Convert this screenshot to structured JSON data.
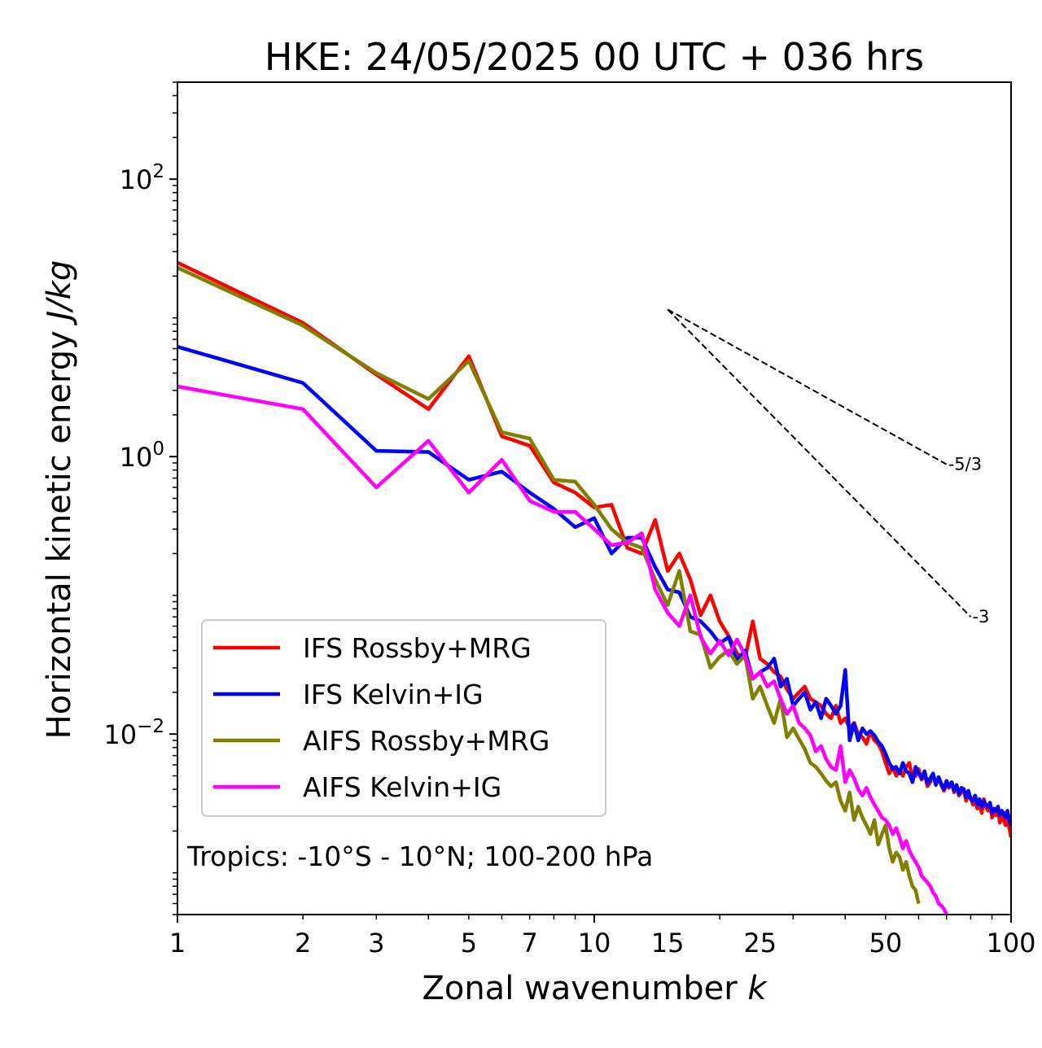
{
  "chart_data": {
    "type": "line",
    "title": "HKE: 24/05/2025 00 UTC + 036 hrs",
    "xlabel": "Zonal wavenumber",
    "xlabel_italic": "k",
    "ylabel": "Horizontal kinetic energy",
    "ylabel_italic": "J/kg",
    "xscale": "log",
    "yscale": "log",
    "xlim": [
      1,
      100
    ],
    "ylim": [
      0.0005,
      500
    ],
    "x_ticks": [
      1,
      2,
      3,
      5,
      7,
      10,
      15,
      25,
      50,
      100
    ],
    "x_tick_labels": [
      "1",
      "2",
      "3",
      "5",
      "7",
      "10",
      "15",
      "25",
      "50",
      "100"
    ],
    "y_ticks": [
      100,
      1,
      0.01
    ],
    "y_tick_base": [
      "10",
      "10",
      "10"
    ],
    "y_tick_exp": [
      "2",
      "0",
      "−2"
    ],
    "grid": false,
    "legend_position": "lower-left",
    "annotation": "Tropics: -10°S - 10°N; 100-200 hPa",
    "reference_lines": [
      {
        "label": "-5/3",
        "slope": -1.6667,
        "x": [
          15,
          70
        ],
        "y": [
          11.5,
          0.88
        ]
      },
      {
        "label": "-3",
        "slope": -3,
        "x": [
          15,
          80
        ],
        "y": [
          11.5,
          0.07
        ]
      }
    ],
    "series": [
      {
        "name": "IFS Rossby+MRG",
        "color": "#ff0000",
        "x": [
          1,
          2,
          3,
          4,
          5,
          6,
          7,
          8,
          9,
          10,
          11,
          12,
          13,
          14,
          15,
          16,
          17,
          18,
          19,
          20,
          21,
          22,
          23,
          24,
          25,
          26,
          27,
          28,
          29,
          30,
          31,
          32,
          33,
          34,
          35,
          36,
          37,
          38,
          39,
          40,
          41,
          42,
          43,
          44,
          45,
          46,
          47,
          48,
          49,
          50,
          51,
          52,
          53,
          54,
          55,
          56,
          57,
          58,
          59,
          60,
          61,
          62,
          63,
          64,
          65,
          66,
          67,
          68,
          69,
          70,
          71,
          72,
          73,
          74,
          75,
          76,
          77,
          78,
          79,
          80,
          81,
          82,
          83,
          84,
          85,
          86,
          87,
          88,
          89,
          90,
          91,
          92,
          93,
          94,
          95,
          96,
          97,
          98,
          99,
          100
        ],
        "y": [
          25,
          9.2,
          3.9,
          2.2,
          5.3,
          1.4,
          1.2,
          0.65,
          0.55,
          0.43,
          0.45,
          0.22,
          0.2,
          0.35,
          0.15,
          0.2,
          0.13,
          0.072,
          0.1,
          0.065,
          0.051,
          0.038,
          0.035,
          0.065,
          0.035,
          0.032,
          0.028,
          0.026,
          0.021,
          0.018,
          0.02,
          0.022,
          0.018,
          0.017,
          0.016,
          0.014,
          0.013,
          0.016,
          0.012,
          0.013,
          0.011,
          0.012,
          0.01,
          0.0095,
          0.0085,
          0.0105,
          0.009,
          0.0085,
          0.0075,
          0.0062,
          0.0052,
          0.0058,
          0.005,
          0.0055,
          0.005,
          0.0058,
          0.0062,
          0.0048,
          0.005,
          0.0056,
          0.0047,
          0.0052,
          0.0042,
          0.0045,
          0.0051,
          0.0044,
          0.0048,
          0.0043,
          0.0039,
          0.0043,
          0.0041,
          0.0045,
          0.0038,
          0.0042,
          0.0036,
          0.0038,
          0.004,
          0.0033,
          0.0037,
          0.0035,
          0.0031,
          0.0033,
          0.0029,
          0.0032,
          0.0027,
          0.0034,
          0.003,
          0.0028,
          0.0031,
          0.0025,
          0.0028,
          0.0026,
          0.0029,
          0.0023,
          0.0026,
          0.0024,
          0.0022,
          0.0025,
          0.0021,
          0.0018
        ]
      },
      {
        "name": "IFS Kelvin+IG",
        "color": "#0000ff",
        "x": [
          1,
          2,
          3,
          4,
          5,
          6,
          7,
          8,
          9,
          10,
          11,
          12,
          13,
          14,
          15,
          16,
          17,
          18,
          19,
          20,
          21,
          22,
          23,
          24,
          25,
          26,
          27,
          28,
          29,
          30,
          31,
          32,
          33,
          34,
          35,
          36,
          37,
          38,
          39,
          40,
          41,
          42,
          43,
          44,
          45,
          46,
          47,
          48,
          49,
          50,
          51,
          52,
          53,
          54,
          55,
          56,
          57,
          58,
          59,
          60,
          61,
          62,
          63,
          64,
          65,
          66,
          67,
          68,
          69,
          70,
          71,
          72,
          73,
          74,
          75,
          76,
          77,
          78,
          79,
          80,
          81,
          82,
          83,
          84,
          85,
          86,
          87,
          88,
          89,
          90,
          91,
          92,
          93,
          94,
          95,
          96,
          97,
          98,
          99,
          100
        ],
        "y": [
          6.2,
          3.4,
          1.1,
          1.08,
          0.68,
          0.78,
          0.55,
          0.42,
          0.31,
          0.36,
          0.2,
          0.26,
          0.26,
          0.16,
          0.11,
          0.105,
          0.07,
          0.065,
          0.055,
          0.045,
          0.05,
          0.034,
          0.04,
          0.025,
          0.028,
          0.03,
          0.035,
          0.022,
          0.025,
          0.016,
          0.018,
          0.02,
          0.015,
          0.017,
          0.013,
          0.018,
          0.016,
          0.014,
          0.016,
          0.029,
          0.009,
          0.012,
          0.009,
          0.011,
          0.01,
          0.0105,
          0.0098,
          0.0088,
          0.0082,
          0.0072,
          0.0062,
          0.0056,
          0.0058,
          0.0052,
          0.0062,
          0.0054,
          0.0052,
          0.0045,
          0.0058,
          0.0052,
          0.0048,
          0.0054,
          0.0044,
          0.0048,
          0.0052,
          0.0043,
          0.0049,
          0.0044,
          0.004,
          0.0046,
          0.0042,
          0.0045,
          0.0039,
          0.0043,
          0.0037,
          0.0041,
          0.004,
          0.0035,
          0.0039,
          0.0034,
          0.0033,
          0.0036,
          0.0031,
          0.0034,
          0.003,
          0.0033,
          0.0031,
          0.003,
          0.0032,
          0.0027,
          0.0029,
          0.0028,
          0.003,
          0.0026,
          0.0028,
          0.0027,
          0.0025,
          0.0028,
          0.0024,
          0.0022
        ]
      },
      {
        "name": "AIFS Rossby+MRG",
        "color": "#808000",
        "x": [
          1,
          2,
          3,
          4,
          5,
          6,
          7,
          8,
          9,
          10,
          11,
          12,
          13,
          14,
          15,
          16,
          17,
          18,
          19,
          20,
          21,
          22,
          23,
          24,
          25,
          26,
          27,
          28,
          29,
          30,
          31,
          32,
          33,
          34,
          35,
          36,
          37,
          38,
          39,
          40,
          41,
          42,
          43,
          44,
          45,
          46,
          47,
          48,
          49,
          50,
          51,
          52,
          53,
          54,
          55,
          56,
          57,
          58,
          59,
          60
        ],
        "y": [
          23,
          8.8,
          4.0,
          2.6,
          4.9,
          1.5,
          1.35,
          0.68,
          0.66,
          0.45,
          0.3,
          0.24,
          0.22,
          0.13,
          0.085,
          0.15,
          0.055,
          0.052,
          0.03,
          0.036,
          0.04,
          0.032,
          0.037,
          0.018,
          0.022,
          0.016,
          0.012,
          0.018,
          0.0095,
          0.011,
          0.0092,
          0.0078,
          0.0062,
          0.0058,
          0.0052,
          0.0046,
          0.0042,
          0.0045,
          0.0033,
          0.0028,
          0.0038,
          0.0024,
          0.003,
          0.0025,
          0.0022,
          0.0019,
          0.0024,
          0.0016,
          0.0019,
          0.0022,
          0.0015,
          0.0012,
          0.0014,
          0.0013,
          0.00105,
          0.0012,
          0.00095,
          0.0008,
          0.00075,
          0.0006
        ]
      },
      {
        "name": "AIFS Kelvin+IG",
        "color": "#ff00ff",
        "x": [
          1,
          2,
          3,
          4,
          5,
          6,
          7,
          8,
          9,
          10,
          11,
          12,
          13,
          14,
          15,
          16,
          17,
          18,
          19,
          20,
          21,
          22,
          23,
          24,
          25,
          26,
          27,
          28,
          29,
          30,
          31,
          32,
          33,
          34,
          35,
          36,
          37,
          38,
          39,
          40,
          41,
          42,
          43,
          44,
          45,
          46,
          47,
          48,
          49,
          50,
          51,
          52,
          53,
          54,
          55,
          56,
          57,
          58,
          59,
          60,
          61,
          62,
          63,
          64,
          65,
          66,
          67,
          68,
          69,
          70
        ],
        "y": [
          3.2,
          2.2,
          0.6,
          1.3,
          0.55,
          0.95,
          0.48,
          0.4,
          0.4,
          0.3,
          0.23,
          0.24,
          0.28,
          0.11,
          0.075,
          0.06,
          0.1,
          0.05,
          0.038,
          0.047,
          0.037,
          0.048,
          0.037,
          0.025,
          0.028,
          0.022,
          0.024,
          0.018,
          0.014,
          0.016,
          0.012,
          0.011,
          0.0098,
          0.0075,
          0.0082,
          0.0066,
          0.0058,
          0.0055,
          0.0082,
          0.0045,
          0.0055,
          0.0048,
          0.004,
          0.0036,
          0.0041,
          0.0035,
          0.0031,
          0.0028,
          0.0025,
          0.0024,
          0.0022,
          0.0019,
          0.0021,
          0.0018,
          0.0015,
          0.0017,
          0.00145,
          0.0013,
          0.0012,
          0.0011,
          0.00095,
          0.0009,
          0.00085,
          0.0008,
          0.00072,
          0.00068,
          0.0006,
          0.00058,
          0.00055,
          0.0005
        ]
      }
    ]
  }
}
